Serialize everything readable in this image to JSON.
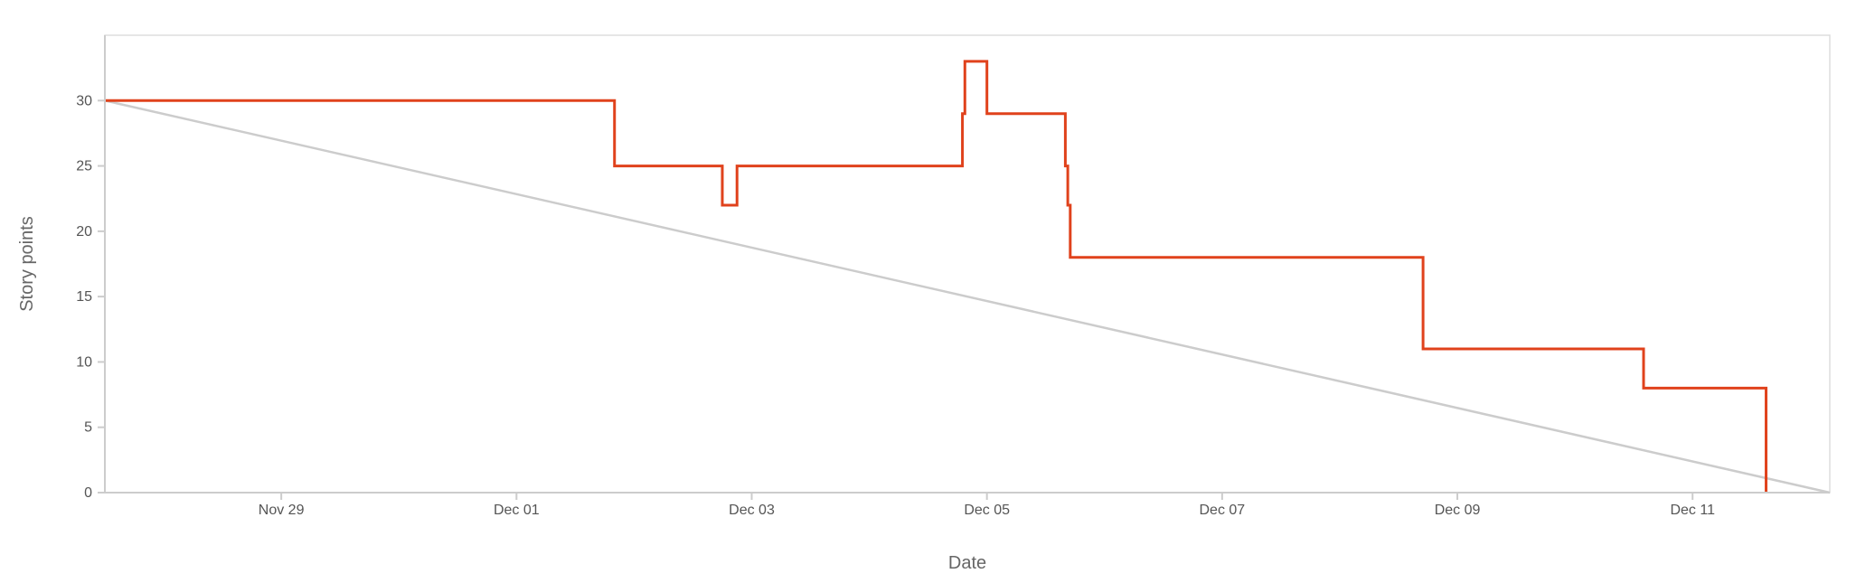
{
  "chart_data": {
    "type": "line",
    "xlabel": "Date",
    "ylabel": "Story points",
    "xlim": [
      "2023-11-27T12:00",
      "2023-12-12T04:00"
    ],
    "ylim": [
      0,
      35
    ],
    "x_ticks": [
      "2023-11-29",
      "2023-12-01",
      "2023-12-03",
      "2023-12-05",
      "2023-12-07",
      "2023-12-09",
      "2023-12-11"
    ],
    "x_tick_labels": [
      "Nov 29",
      "Dec 01",
      "Dec 03",
      "Dec 05",
      "Dec 07",
      "Dec 09",
      "Dec 11"
    ],
    "y_ticks": [
      0,
      5,
      10,
      15,
      20,
      25,
      30
    ],
    "grid": false,
    "series": [
      {
        "role": "ideal",
        "color": "#cccccc",
        "interpolation": "linear",
        "points": [
          {
            "x": "2023-11-27T12:00",
            "y": 30
          },
          {
            "x": "2023-12-12T04:00",
            "y": 0
          }
        ]
      },
      {
        "role": "actual",
        "color": "#e0421c",
        "interpolation": "step-after",
        "points": [
          {
            "x": "2023-11-27T12:00",
            "y": 30
          },
          {
            "x": "2023-12-01T20:00",
            "y": 25
          },
          {
            "x": "2023-12-02T18:00",
            "y": 22
          },
          {
            "x": "2023-12-02T21:00",
            "y": 25
          },
          {
            "x": "2023-12-04T19:00",
            "y": 29
          },
          {
            "x": "2023-12-04T19:30",
            "y": 33
          },
          {
            "x": "2023-12-05T00:00",
            "y": 29
          },
          {
            "x": "2023-12-05T16:00",
            "y": 25
          },
          {
            "x": "2023-12-05T16:30",
            "y": 22
          },
          {
            "x": "2023-12-05T17:00",
            "y": 18
          },
          {
            "x": "2023-12-08T17:00",
            "y": 11
          },
          {
            "x": "2023-12-10T14:00",
            "y": 8
          },
          {
            "x": "2023-12-11T15:00",
            "y": 0
          }
        ]
      }
    ]
  }
}
